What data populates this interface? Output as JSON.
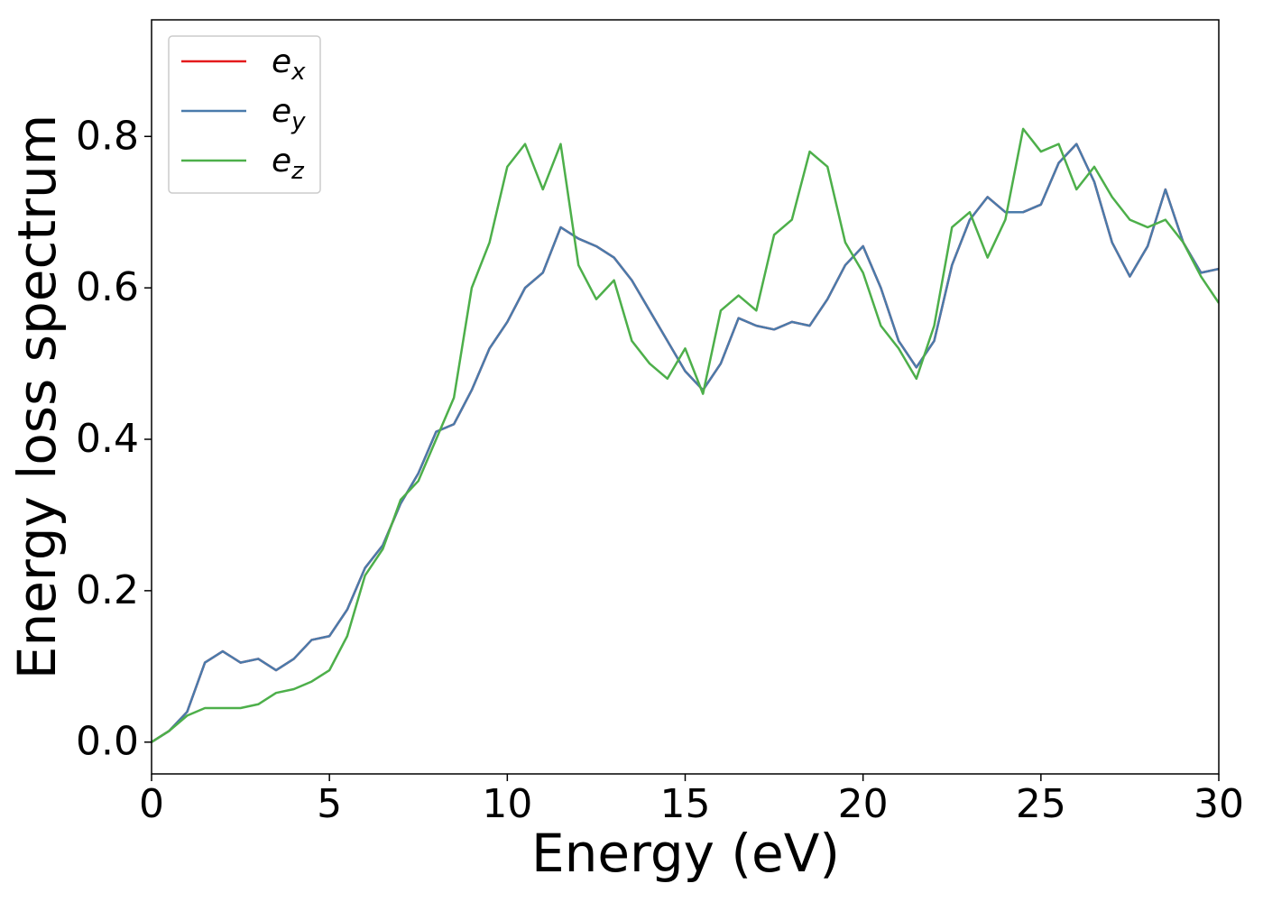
{
  "chart_data": {
    "type": "line",
    "xlabel": "Energy (eV)",
    "ylabel": "Energy loss spectrum",
    "x": [
      0,
      0.5,
      1,
      1.5,
      2,
      2.5,
      3,
      3.5,
      4,
      4.5,
      5,
      5.5,
      6,
      6.5,
      7,
      7.5,
      8,
      8.5,
      9,
      9.5,
      10,
      10.5,
      11,
      11.5,
      12,
      12.5,
      13,
      13.5,
      14,
      14.5,
      15,
      15.5,
      16,
      16.5,
      17,
      17.5,
      18,
      18.5,
      19,
      19.5,
      20,
      20.5,
      21,
      21.5,
      22,
      22.5,
      23,
      23.5,
      24,
      24.5,
      25,
      25.5,
      26,
      26.5,
      27,
      27.5,
      28,
      28.5,
      29,
      29.5,
      30
    ],
    "series": [
      {
        "name": "e_x",
        "color": "#e41a1c",
        "values": [
          0,
          0.015,
          0.04,
          0.105,
          0.12,
          0.105,
          0.11,
          0.095,
          0.11,
          0.135,
          0.14,
          0.175,
          0.23,
          0.26,
          0.315,
          0.355,
          0.41,
          0.42,
          0.465,
          0.52,
          0.555,
          0.6,
          0.62,
          0.68,
          0.665,
          0.655,
          0.64,
          0.61,
          0.57,
          0.53,
          0.49,
          0.465,
          0.5,
          0.56,
          0.55,
          0.545,
          0.555,
          0.55,
          0.585,
          0.63,
          0.655,
          0.6,
          0.53,
          0.495,
          0.53,
          0.63,
          0.69,
          0.72,
          0.7,
          0.7,
          0.71,
          0.765,
          0.79,
          0.74,
          0.66,
          0.615,
          0.655,
          0.73,
          0.66,
          0.62,
          0.625
        ]
      },
      {
        "name": "e_y",
        "color": "#4a7bab",
        "values": [
          0,
          0.015,
          0.04,
          0.105,
          0.12,
          0.105,
          0.11,
          0.095,
          0.11,
          0.135,
          0.14,
          0.175,
          0.23,
          0.26,
          0.315,
          0.355,
          0.41,
          0.42,
          0.465,
          0.52,
          0.555,
          0.6,
          0.62,
          0.68,
          0.665,
          0.655,
          0.64,
          0.61,
          0.57,
          0.53,
          0.49,
          0.465,
          0.5,
          0.56,
          0.55,
          0.545,
          0.555,
          0.55,
          0.585,
          0.63,
          0.655,
          0.6,
          0.53,
          0.495,
          0.53,
          0.63,
          0.69,
          0.72,
          0.7,
          0.7,
          0.71,
          0.765,
          0.79,
          0.74,
          0.66,
          0.615,
          0.655,
          0.73,
          0.66,
          0.62,
          0.625
        ]
      },
      {
        "name": "e_z",
        "color": "#4daf4a",
        "values": [
          0,
          0.015,
          0.035,
          0.045,
          0.045,
          0.045,
          0.05,
          0.065,
          0.07,
          0.08,
          0.095,
          0.14,
          0.22,
          0.255,
          0.32,
          0.345,
          0.4,
          0.455,
          0.6,
          0.66,
          0.76,
          0.79,
          0.73,
          0.79,
          0.63,
          0.585,
          0.61,
          0.53,
          0.5,
          0.48,
          0.52,
          0.46,
          0.57,
          0.59,
          0.57,
          0.67,
          0.69,
          0.78,
          0.76,
          0.66,
          0.62,
          0.55,
          0.52,
          0.48,
          0.55,
          0.68,
          0.7,
          0.64,
          0.69,
          0.81,
          0.78,
          0.79,
          0.73,
          0.76,
          0.72,
          0.69,
          0.68,
          0.69,
          0.66,
          0.615,
          0.58
        ]
      }
    ],
    "xlim": [
      0,
      30
    ],
    "xticks": [
      0,
      5,
      10,
      15,
      20,
      25,
      30
    ],
    "ylim": [
      -0.042,
      0.954
    ],
    "yticks": [
      {
        "value": 0,
        "label": "0.0"
      },
      {
        "value": 0.2,
        "label": "0.2"
      },
      {
        "value": 0.4,
        "label": "0.4"
      },
      {
        "value": 0.6,
        "label": "0.6"
      },
      {
        "value": 0.8,
        "label": "0.8"
      }
    ],
    "legend": "upper left"
  }
}
